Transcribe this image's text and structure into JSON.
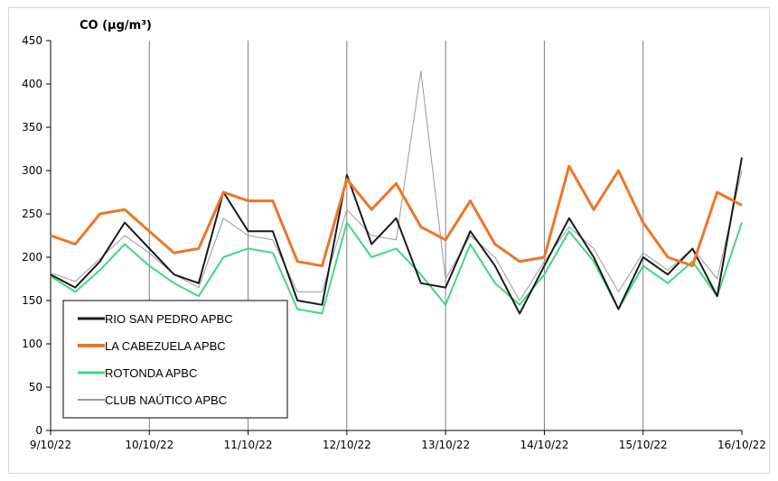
{
  "chart_data": {
    "type": "line",
    "title": "CO (µg/m³)",
    "ylim": [
      0,
      450
    ],
    "yticks": [
      0,
      50,
      100,
      150,
      200,
      250,
      300,
      350,
      400,
      450
    ],
    "xlim": [
      "2022-10-09",
      "2022-10-16"
    ],
    "xticks": [
      "9/10/22",
      "10/10/22",
      "11/10/22",
      "12/10/22",
      "13/10/22",
      "14/10/22",
      "15/10/22",
      "16/10/22"
    ],
    "grid": "vertical",
    "legend_position": "bottom-left",
    "series": [
      {
        "name": "RIO SAN PEDRO APBC",
        "color": "#1a1a1a",
        "x": [
          "2022-10-09 00:00",
          "2022-10-09 06:00",
          "2022-10-09 12:00",
          "2022-10-09 18:00",
          "2022-10-10 00:00",
          "2022-10-10 06:00",
          "2022-10-10 12:00",
          "2022-10-10 18:00",
          "2022-10-11 00:00",
          "2022-10-11 06:00",
          "2022-10-11 12:00",
          "2022-10-11 18:00",
          "2022-10-12 00:00",
          "2022-10-12 06:00",
          "2022-10-12 12:00",
          "2022-10-12 18:00",
          "2022-10-13 00:00",
          "2022-10-13 06:00",
          "2022-10-13 12:00",
          "2022-10-13 18:00",
          "2022-10-14 00:00",
          "2022-10-14 06:00",
          "2022-10-14 12:00",
          "2022-10-14 18:00",
          "2022-10-15 00:00",
          "2022-10-15 06:00",
          "2022-10-15 12:00",
          "2022-10-15 18:00",
          "2022-10-16 00:00"
        ],
        "values": [
          180,
          165,
          195,
          240,
          210,
          180,
          170,
          275,
          230,
          230,
          150,
          145,
          295,
          215,
          245,
          170,
          165,
          230,
          190,
          135,
          190,
          245,
          200,
          140,
          200,
          180,
          210,
          155,
          315
        ]
      },
      {
        "name": "LA CABEZUELA  APBC",
        "color": "#f07426",
        "x": [
          "2022-10-09 00:00",
          "2022-10-09 06:00",
          "2022-10-09 12:00",
          "2022-10-09 18:00",
          "2022-10-10 00:00",
          "2022-10-10 06:00",
          "2022-10-10 12:00",
          "2022-10-10 18:00",
          "2022-10-11 00:00",
          "2022-10-11 06:00",
          "2022-10-11 12:00",
          "2022-10-11 18:00",
          "2022-10-12 00:00",
          "2022-10-12 06:00",
          "2022-10-12 12:00",
          "2022-10-12 18:00",
          "2022-10-13 00:00",
          "2022-10-13 06:00",
          "2022-10-13 12:00",
          "2022-10-13 18:00",
          "2022-10-14 00:00",
          "2022-10-14 06:00",
          "2022-10-14 12:00",
          "2022-10-14 18:00",
          "2022-10-15 00:00",
          "2022-10-15 06:00",
          "2022-10-15 12:00",
          "2022-10-15 18:00",
          "2022-10-16 00:00"
        ],
        "values": [
          225,
          215,
          250,
          255,
          230,
          205,
          210,
          275,
          265,
          265,
          195,
          190,
          290,
          255,
          285,
          235,
          220,
          265,
          215,
          195,
          200,
          305,
          255,
          300,
          240,
          200,
          190,
          275,
          260
        ]
      },
      {
        "name": "ROTONDA  APBC",
        "color": "#3fd884",
        "x": [
          "2022-10-09 00:00",
          "2022-10-09 06:00",
          "2022-10-09 12:00",
          "2022-10-09 18:00",
          "2022-10-10 00:00",
          "2022-10-10 06:00",
          "2022-10-10 12:00",
          "2022-10-10 18:00",
          "2022-10-11 00:00",
          "2022-10-11 06:00",
          "2022-10-11 12:00",
          "2022-10-11 18:00",
          "2022-10-12 00:00",
          "2022-10-12 06:00",
          "2022-10-12 12:00",
          "2022-10-12 18:00",
          "2022-10-13 00:00",
          "2022-10-13 06:00",
          "2022-10-13 12:00",
          "2022-10-13 18:00",
          "2022-10-14 00:00",
          "2022-10-14 06:00",
          "2022-10-14 12:00",
          "2022-10-14 18:00",
          "2022-10-15 00:00",
          "2022-10-15 06:00",
          "2022-10-15 12:00",
          "2022-10-15 18:00",
          "2022-10-16 00:00"
        ],
        "values": [
          178,
          160,
          185,
          215,
          190,
          170,
          155,
          200,
          210,
          205,
          140,
          135,
          240,
          200,
          210,
          180,
          145,
          215,
          170,
          145,
          180,
          230,
          195,
          140,
          190,
          170,
          195,
          155,
          240
        ]
      },
      {
        "name": "CLUB NAÚTICO  APBC",
        "color": "#9a9a9a",
        "x": [
          "2022-10-09 00:00",
          "2022-10-09 06:00",
          "2022-10-09 12:00",
          "2022-10-09 18:00",
          "2022-10-10 00:00",
          "2022-10-10 06:00",
          "2022-10-10 12:00",
          "2022-10-10 18:00",
          "2022-10-11 00:00",
          "2022-10-11 06:00",
          "2022-10-11 12:00",
          "2022-10-11 18:00",
          "2022-10-12 00:00",
          "2022-10-12 06:00",
          "2022-10-12 12:00",
          "2022-10-12 18:00",
          "2022-10-13 00:00",
          "2022-10-13 06:00",
          "2022-10-13 12:00",
          "2022-10-13 18:00",
          "2022-10-14 00:00",
          "2022-10-14 06:00",
          "2022-10-14 12:00",
          "2022-10-14 18:00",
          "2022-10-15 00:00",
          "2022-10-15 06:00",
          "2022-10-15 12:00",
          "2022-10-15 18:00",
          "2022-10-16 00:00"
        ],
        "values": [
          182,
          172,
          198,
          225,
          205,
          180,
          165,
          245,
          225,
          220,
          160,
          160,
          255,
          225,
          220,
          415,
          175,
          225,
          200,
          150,
          195,
          235,
          210,
          160,
          205,
          185,
          210,
          175,
          300
        ]
      }
    ]
  }
}
